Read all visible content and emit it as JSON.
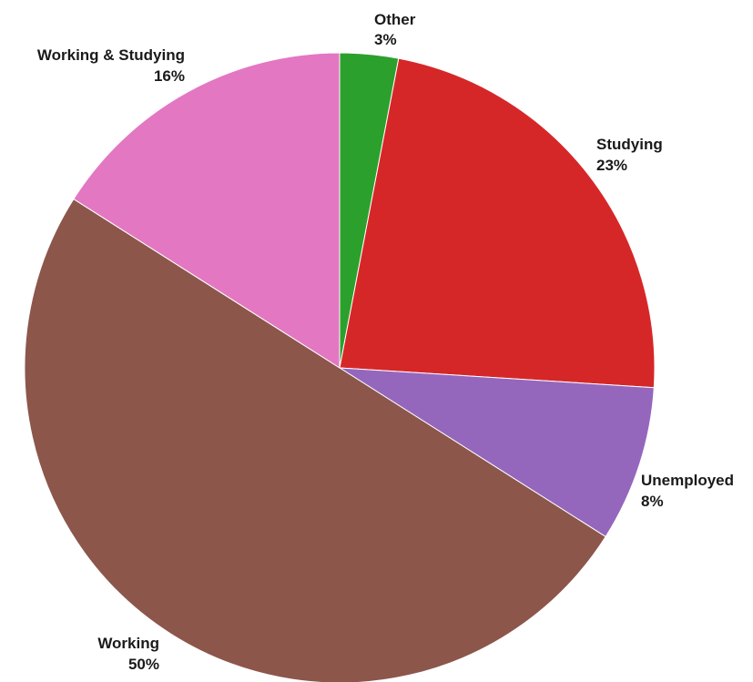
{
  "chart_data": {
    "type": "pie",
    "title": "",
    "slices": [
      {
        "label": "Other",
        "value": 3,
        "value_label": "3%",
        "color": "#2ca02c"
      },
      {
        "label": "Studying",
        "value": 23,
        "value_label": "23%",
        "color": "#d62728"
      },
      {
        "label": "Unemployed",
        "value": 8,
        "value_label": "8%",
        "color": "#9467bd"
      },
      {
        "label": "Working",
        "value": 50,
        "value_label": "50%",
        "color": "#8c564b"
      },
      {
        "label": "Working & Studying",
        "value": 16,
        "value_label": "16%",
        "color": "#e377c2"
      }
    ],
    "start_angle": "12 o'clock",
    "direction": "clockwise",
    "legend": "none"
  }
}
